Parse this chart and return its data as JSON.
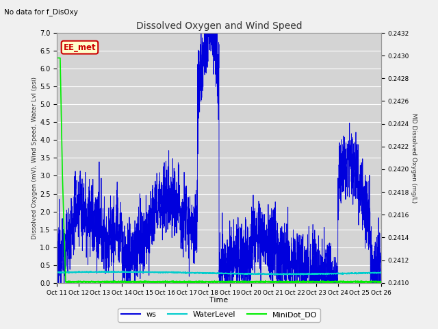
{
  "title": "Dissolved Oxygen and Wind Speed",
  "top_left_text": "No data for f_DisOxy",
  "legend_box_label": "EE_met",
  "ylabel_left": "Dissolved Oxygen (mV), Wind Speed, Water Lvl (psi)",
  "ylabel_right": "MD Dissolved Oxygen (mg/L)",
  "xlabel": "Time",
  "ylim_left": [
    0.0,
    7.0
  ],
  "ylim_right": [
    0.241,
    0.2432
  ],
  "x_tick_labels": [
    "Oct 11",
    "Oct 12",
    "Oct 13",
    "Oct 14",
    "Oct 15",
    "Oct 16",
    "Oct 17",
    "Oct 18",
    "Oct 19",
    "Oct 20",
    "Oct 21",
    "Oct 22",
    "Oct 23",
    "Oct 24",
    "Oct 25",
    "Oct 26"
  ],
  "fig_bg_color": "#f0f0f0",
  "plot_bg_color": "#d4d4d4",
  "ws_color": "#0000dd",
  "water_color": "#00cccc",
  "minidot_color": "#00ee00",
  "legend_box_color": "#cc0000",
  "legend_box_bg": "#ffffcc",
  "grid_color": "#ffffff",
  "yticks_left": [
    0.0,
    0.5,
    1.0,
    1.5,
    2.0,
    2.5,
    3.0,
    3.5,
    4.0,
    4.5,
    5.0,
    5.5,
    6.0,
    6.5,
    7.0
  ],
  "yticks_right": [
    0.241,
    0.2412,
    0.2414,
    0.2416,
    0.2418,
    0.242,
    0.2422,
    0.2424,
    0.2426,
    0.2428,
    0.243,
    0.2432
  ]
}
